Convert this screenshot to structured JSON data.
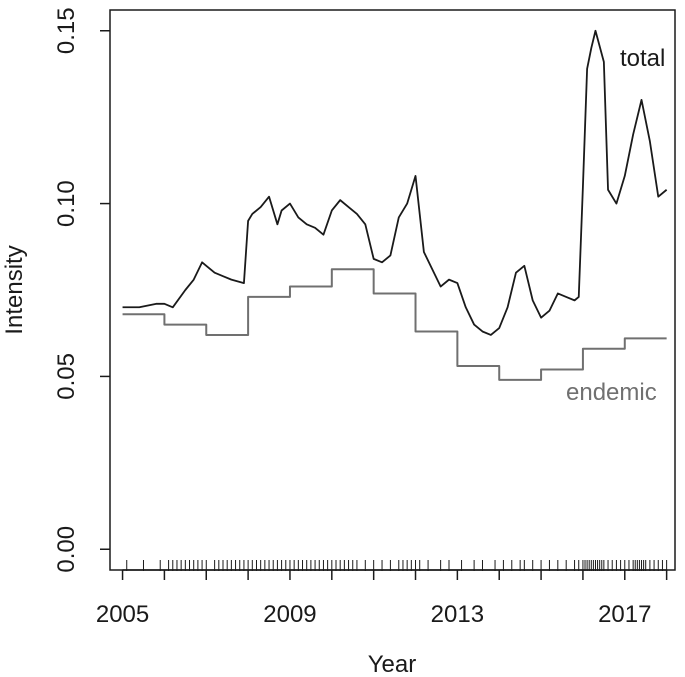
{
  "chart_data": {
    "type": "line",
    "title": "",
    "xlabel": "Year",
    "ylabel": "Intensity",
    "xlim": [
      2004.7,
      2018.2
    ],
    "ylim": [
      -0.006,
      0.156
    ],
    "grid": false,
    "legend": "none",
    "x_ticks": [
      {
        "value": 2005,
        "label": "2005"
      },
      {
        "value": 2009,
        "label": "2009"
      },
      {
        "value": 2013,
        "label": "2013"
      },
      {
        "value": 2017,
        "label": "2017"
      }
    ],
    "y_ticks": [
      {
        "value": 0.0,
        "label": "0.00"
      },
      {
        "value": 0.05,
        "label": "0.05"
      },
      {
        "value": 0.1,
        "label": "0.10"
      },
      {
        "value": 0.15,
        "label": "0.15"
      }
    ],
    "series": [
      {
        "name": "total",
        "color": "#1a1a1a",
        "x": [
          2005.0,
          2005.4,
          2005.8,
          2006.0,
          2006.2,
          2006.5,
          2006.7,
          2006.9,
          2007.0,
          2007.2,
          2007.4,
          2007.6,
          2007.9,
          2008.0,
          2008.1,
          2008.3,
          2008.5,
          2008.7,
          2008.8,
          2009.0,
          2009.2,
          2009.4,
          2009.6,
          2009.8,
          2010.0,
          2010.2,
          2010.4,
          2010.6,
          2010.8,
          2011.0,
          2011.2,
          2011.4,
          2011.6,
          2011.8,
          2012.0,
          2012.2,
          2012.4,
          2012.6,
          2012.8,
          2013.0,
          2013.2,
          2013.4,
          2013.6,
          2013.8,
          2014.0,
          2014.2,
          2014.4,
          2014.6,
          2014.8,
          2015.0,
          2015.2,
          2015.4,
          2015.6,
          2015.8,
          2015.9,
          2016.0,
          2016.1,
          2016.2,
          2016.3,
          2016.5,
          2016.6,
          2016.8,
          2017.0,
          2017.2,
          2017.4,
          2017.6,
          2017.8,
          2018.0
        ],
        "values": [
          0.07,
          0.07,
          0.071,
          0.071,
          0.07,
          0.075,
          0.078,
          0.083,
          0.082,
          0.08,
          0.079,
          0.078,
          0.077,
          0.095,
          0.097,
          0.099,
          0.102,
          0.094,
          0.098,
          0.1,
          0.096,
          0.094,
          0.093,
          0.091,
          0.098,
          0.101,
          0.099,
          0.097,
          0.094,
          0.084,
          0.083,
          0.085,
          0.096,
          0.1,
          0.108,
          0.086,
          0.081,
          0.076,
          0.078,
          0.077,
          0.07,
          0.065,
          0.063,
          0.062,
          0.064,
          0.07,
          0.08,
          0.082,
          0.072,
          0.067,
          0.069,
          0.074,
          0.073,
          0.072,
          0.073,
          0.105,
          0.139,
          0.145,
          0.15,
          0.141,
          0.104,
          0.1,
          0.108,
          0.12,
          0.13,
          0.118,
          0.102,
          0.104
        ]
      },
      {
        "name": "endemic",
        "color": "#707070",
        "x": [
          2005.0,
          2006.0,
          2007.0,
          2008.0,
          2009.0,
          2010.0,
          2011.0,
          2012.0,
          2013.0,
          2014.0,
          2015.0,
          2016.0,
          2017.0,
          2018.0
        ],
        "values": [
          0.068,
          0.065,
          0.062,
          0.073,
          0.076,
          0.081,
          0.074,
          0.063,
          0.053,
          0.049,
          0.052,
          0.058,
          0.061,
          0.061
        ]
      }
    ],
    "rug_events": [
      2005.1,
      2005.5,
      2005.9,
      2006.1,
      2006.2,
      2006.3,
      2006.4,
      2006.5,
      2006.6,
      2006.7,
      2006.8,
      2006.9,
      2007.0,
      2007.2,
      2007.3,
      2007.4,
      2007.5,
      2007.6,
      2007.7,
      2007.8,
      2007.9,
      2008.0,
      2008.1,
      2008.2,
      2008.3,
      2008.4,
      2008.5,
      2008.6,
      2008.7,
      2008.8,
      2008.9,
      2009.0,
      2009.1,
      2009.2,
      2009.3,
      2009.4,
      2009.5,
      2009.6,
      2009.7,
      2009.8,
      2009.9,
      2010.0,
      2010.1,
      2010.2,
      2010.3,
      2010.4,
      2010.5,
      2010.6,
      2010.8,
      2011.0,
      2011.2,
      2011.4,
      2011.6,
      2011.7,
      2011.8,
      2011.9,
      2012.0,
      2012.1,
      2012.3,
      2012.6,
      2012.8,
      2013.1,
      2013.4,
      2013.6,
      2013.9,
      2014.1,
      2014.3,
      2014.5,
      2014.6,
      2014.8,
      2015.0,
      2015.2,
      2015.4,
      2015.6,
      2015.8,
      2015.9,
      2016.0,
      2016.05,
      2016.1,
      2016.15,
      2016.2,
      2016.25,
      2016.3,
      2016.35,
      2016.4,
      2016.45,
      2016.5,
      2016.6,
      2016.7,
      2016.8,
      2016.9,
      2017.0,
      2017.1,
      2017.2,
      2017.25,
      2017.3,
      2017.35,
      2017.4,
      2017.45,
      2017.5,
      2017.6,
      2017.7,
      2017.8,
      2017.9,
      2018.0
    ]
  }
}
